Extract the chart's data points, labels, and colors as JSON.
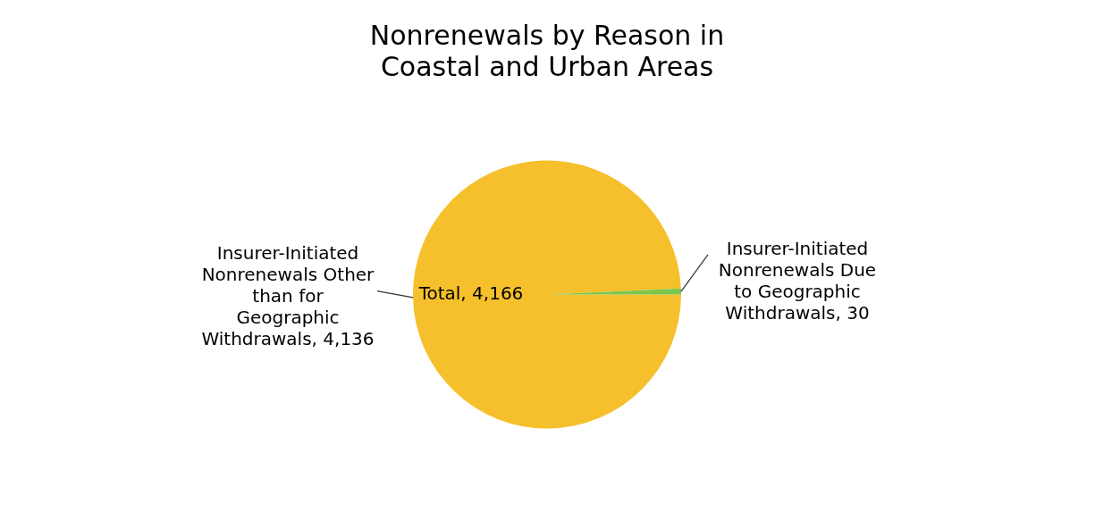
{
  "chart_data": {
    "type": "pie",
    "title": "Nonrenewals by Reason in Coastal and Urban Areas",
    "categories": [
      "Insurer-Initiated Nonrenewals Other than for Geographic Withdrawals",
      "Insurer-Initiated Nonrenewals Due to Geographic Withdrawals"
    ],
    "values": [
      4136,
      30
    ],
    "value_labels": [
      "4,136",
      "30"
    ],
    "colors": [
      "#f5c02c",
      "#7dc64b"
    ],
    "data_labels": true,
    "legend": false,
    "annotations": [
      "Total, 4,166"
    ]
  }
}
